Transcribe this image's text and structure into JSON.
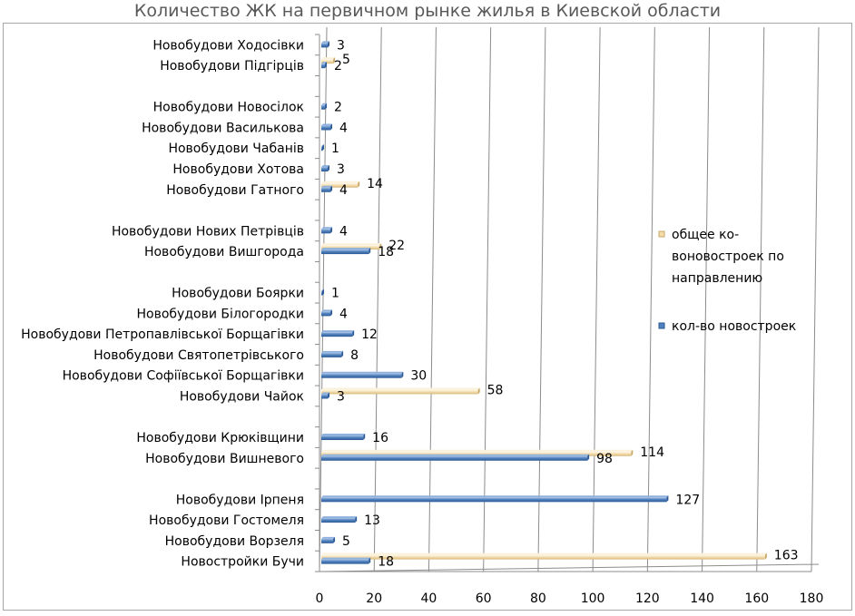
{
  "chart_data": {
    "type": "bar",
    "orientation": "horizontal",
    "title": "Количество ЖК  на первичном рынке жилья в Киевской области",
    "xlim": [
      0,
      180
    ],
    "xticks": [
      0,
      20,
      40,
      60,
      80,
      100,
      120,
      140,
      160,
      180
    ],
    "grid": true,
    "legend_position": "right",
    "categories": [
      "Новобудови Ходосівки",
      "Новобудови Підгірців",
      "",
      "Новобудови Новосілок",
      "Новобудови Василькова",
      "Новобудови Чабанів",
      "Новобудови Хотова",
      "Новобудови Гатного",
      "",
      "Новобудови Нових Петрівців",
      "Новобудови Вишгорода",
      "",
      "Новобудови Боярки",
      "Новобудови Білогородки",
      "Новобудови Петропавлівської Борщагівки",
      "Новобудови Святопетрівського",
      "Новобудови Софіївської Борщагівки",
      "Новобудови Чайок",
      "",
      "Новобудови Крюківщини",
      "Новобудови Вишневого",
      "",
      "Новобудови Ірпеня",
      "Новобудови Гостомеля",
      "Новобудови Ворзеля",
      "Новостройки  Бучи"
    ],
    "series": [
      {
        "name": "кол-во новостроек",
        "color": "#4f81bd",
        "values": [
          3,
          2,
          null,
          2,
          4,
          1,
          3,
          4,
          null,
          4,
          18,
          null,
          1,
          4,
          12,
          8,
          30,
          3,
          null,
          16,
          98,
          null,
          127,
          13,
          5,
          18
        ]
      },
      {
        "name": "общее ко-воновостроек  по направлению",
        "legend_lines": [
          "общее ко-",
          "воновостроек  по",
          "направлению"
        ],
        "color": "#f2dcaa",
        "values": [
          null,
          5,
          null,
          null,
          null,
          null,
          null,
          14,
          null,
          null,
          22,
          null,
          null,
          null,
          null,
          null,
          null,
          58,
          null,
          null,
          114,
          null,
          null,
          null,
          null,
          163
        ]
      }
    ]
  }
}
